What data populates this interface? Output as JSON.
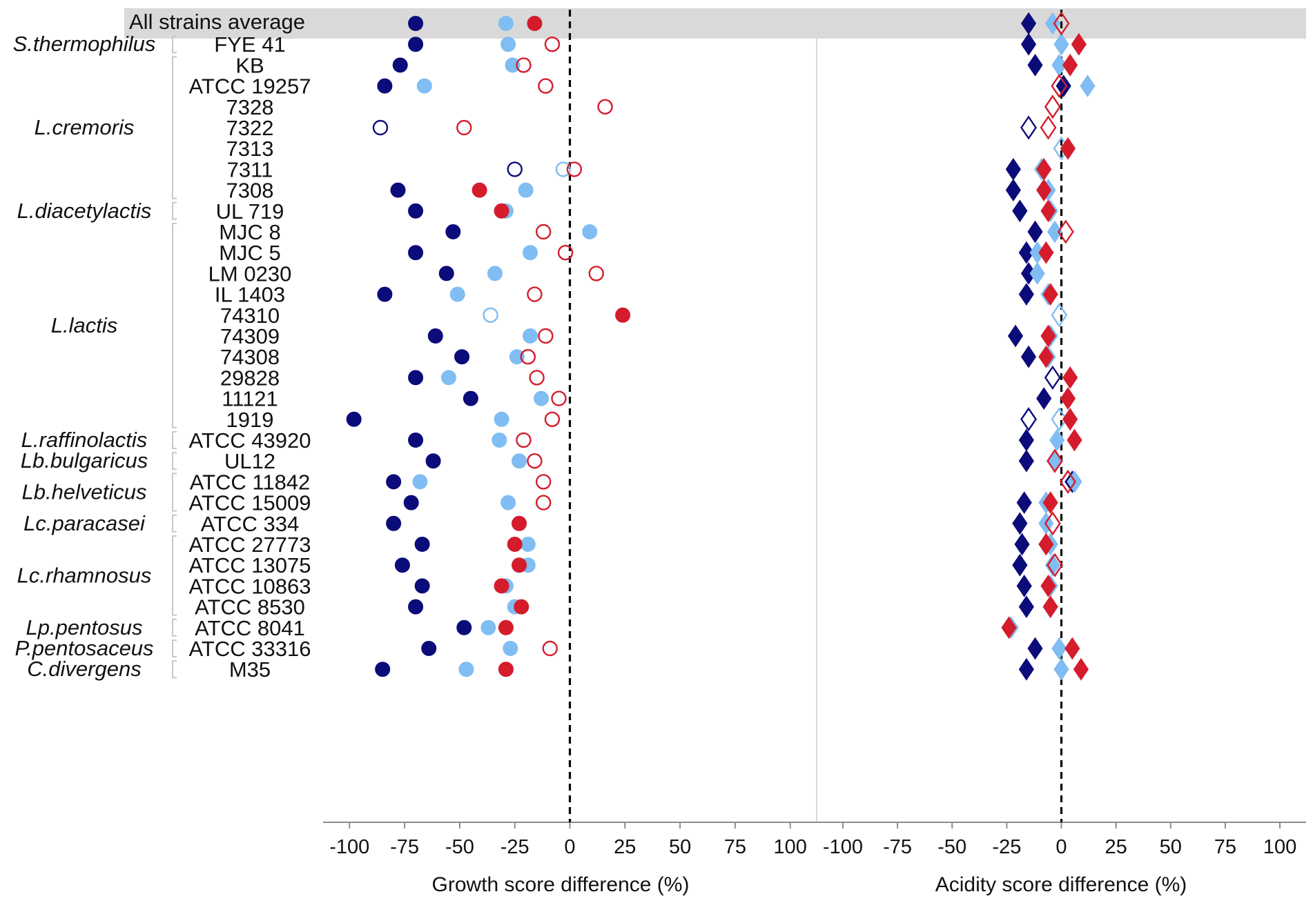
{
  "chart_data": [
    {
      "type": "scatter",
      "panel": "growth",
      "xlabel": "Growth score difference (%)",
      "xlim": [
        -112,
        112
      ],
      "xticks": [
        -100,
        -75,
        -50,
        -25,
        0,
        25,
        50,
        75,
        100
      ],
      "xtick_labels": [
        "-100",
        "-75",
        "-50",
        "-25",
        "0",
        "25",
        "50",
        "75",
        "100"
      ],
      "reference_line": 0,
      "marker": "circle",
      "series": [
        {
          "name": "dark-blue",
          "color": "#0b0b7a",
          "values": [
            -70,
            -70,
            -77,
            -84,
            null,
            -86,
            null,
            -25,
            -78,
            -70,
            -53,
            -70,
            -56,
            -84,
            null,
            -61,
            -49,
            -70,
            -45,
            -98,
            -70,
            -62,
            -80,
            -72,
            -80,
            -67,
            -76,
            -67,
            -70,
            -48,
            -64,
            -85
          ],
          "filled": [
            true,
            true,
            true,
            true,
            false,
            false,
            false,
            false,
            true,
            true,
            true,
            true,
            true,
            true,
            false,
            true,
            true,
            true,
            true,
            true,
            true,
            true,
            true,
            true,
            true,
            true,
            true,
            true,
            true,
            true,
            true,
            true
          ]
        },
        {
          "name": "light-blue",
          "color": "#80bdf2",
          "values": [
            -29,
            -28,
            -26,
            -66,
            null,
            null,
            null,
            -3,
            -20,
            -29,
            9,
            -18,
            -34,
            -51,
            -36,
            -18,
            -24,
            -55,
            -13,
            -31,
            -32,
            -23,
            -68,
            -28,
            -23,
            -19,
            -19,
            -29,
            -25,
            -37,
            -27,
            -47
          ],
          "filled": [
            true,
            true,
            true,
            true,
            false,
            false,
            false,
            false,
            true,
            true,
            true,
            true,
            true,
            true,
            false,
            true,
            true,
            true,
            true,
            true,
            true,
            true,
            true,
            true,
            true,
            true,
            true,
            true,
            true,
            true,
            true,
            true
          ]
        },
        {
          "name": "red",
          "color": "#d41c2c",
          "values": [
            -16,
            -8,
            -21,
            -11,
            16,
            -48,
            null,
            2,
            -41,
            -31,
            -12,
            -2,
            12,
            -16,
            24,
            -11,
            -19,
            -15,
            -5,
            -8,
            -21,
            -16,
            -12,
            -12,
            -23,
            -25,
            -23,
            -31,
            -22,
            -29,
            -9,
            -29
          ],
          "filled": [
            true,
            false,
            false,
            false,
            false,
            false,
            false,
            false,
            true,
            true,
            false,
            false,
            false,
            false,
            true,
            false,
            false,
            false,
            false,
            false,
            false,
            false,
            false,
            false,
            true,
            true,
            true,
            true,
            true,
            true,
            false,
            true
          ]
        }
      ]
    },
    {
      "type": "scatter",
      "panel": "acidity",
      "xlabel": "Acidity score difference (%)",
      "xlim": [
        -112,
        112
      ],
      "xticks": [
        -100,
        -75,
        -50,
        -25,
        0,
        25,
        50,
        75,
        100
      ],
      "xtick_labels": [
        "-100",
        "-75",
        "-50",
        "-25",
        "0",
        "25",
        "50",
        "75",
        "100"
      ],
      "reference_line": 0,
      "marker": "diamond",
      "series": [
        {
          "name": "dark-blue",
          "color": "#0b0b7a",
          "values": [
            -15,
            -15,
            -12,
            1,
            null,
            -15,
            null,
            -22,
            -22,
            -19,
            -12,
            -16,
            -15,
            -16,
            null,
            -21,
            -15,
            -4,
            -8,
            -15,
            -16,
            -16,
            5,
            -17,
            -19,
            -18,
            -19,
            -17,
            -16,
            null,
            -12,
            -16
          ],
          "filled": [
            true,
            true,
            true,
            true,
            false,
            false,
            false,
            true,
            true,
            true,
            true,
            true,
            true,
            true,
            false,
            true,
            true,
            false,
            true,
            false,
            true,
            true,
            true,
            true,
            true,
            true,
            true,
            true,
            true,
            false,
            true,
            true
          ]
        },
        {
          "name": "light-blue",
          "color": "#80bdf2",
          "values": [
            -4,
            0,
            -1,
            12,
            null,
            null,
            0,
            -9,
            -6,
            -5,
            -3,
            -11,
            -11,
            -6,
            -1,
            -5,
            -6,
            null,
            null,
            -1,
            -2,
            -3,
            6,
            -7,
            -7,
            -5,
            -4,
            -5,
            -5,
            -23,
            -1,
            0
          ],
          "filled": [
            true,
            true,
            true,
            true,
            false,
            false,
            false,
            true,
            true,
            true,
            true,
            true,
            true,
            true,
            false,
            true,
            true,
            false,
            false,
            false,
            true,
            true,
            true,
            true,
            true,
            true,
            true,
            true,
            true,
            true,
            true,
            true
          ]
        },
        {
          "name": "red",
          "color": "#d41c2c",
          "values": [
            0,
            8,
            4,
            -1,
            -4,
            -6,
            3,
            -8,
            -8,
            -6,
            2,
            -7,
            null,
            -5,
            null,
            -6,
            -7,
            4,
            3,
            4,
            6,
            -3,
            3,
            -5,
            -4,
            -7,
            -3,
            -6,
            -5,
            -24,
            5,
            9
          ],
          "filled": [
            false,
            true,
            true,
            false,
            false,
            false,
            true,
            true,
            true,
            true,
            false,
            true,
            true,
            true,
            false,
            true,
            true,
            true,
            true,
            true,
            true,
            false,
            false,
            true,
            false,
            true,
            false,
            true,
            true,
            true,
            true,
            true
          ]
        }
      ]
    }
  ],
  "rows": {
    "average_label": "All strains average",
    "strains": [
      "FYE 41",
      "KB",
      "ATCC 19257",
      "7328",
      "7322",
      "7313",
      "7311",
      "7308",
      "UL 719",
      "MJC 8",
      "MJC 5",
      "LM 0230",
      "IL 1403",
      "74310",
      "74309",
      "74308",
      "29828",
      "11121",
      "1919",
      "ATCC 43920",
      "UL12",
      "ATCC 11842",
      "ATCC 15009",
      "ATCC 334",
      "ATCC 27773",
      "ATCC 13075",
      "ATCC 10863",
      "ATCC 8530",
      "ATCC 8041",
      "ATCC 33316",
      "M35"
    ]
  },
  "species_groups": [
    {
      "name": "S.thermophilus",
      "first": 0,
      "last": 0
    },
    {
      "name": "L.cremoris",
      "first": 1,
      "last": 7
    },
    {
      "name": "L.diacetylactis",
      "first": 8,
      "last": 8
    },
    {
      "name": "L.lactis",
      "first": 9,
      "last": 18
    },
    {
      "name": "L.raffinolactis",
      "first": 19,
      "last": 19
    },
    {
      "name": "Lb.bulgaricus",
      "first": 20,
      "last": 20
    },
    {
      "name": "Lb.helveticus",
      "first": 21,
      "last": 22
    },
    {
      "name": "Lc.paracasei",
      "first": 23,
      "last": 23
    },
    {
      "name": "Lc.rhamnosus",
      "first": 24,
      "last": 27
    },
    {
      "name": "Lp.pentosus",
      "first": 28,
      "last": 28
    },
    {
      "name": "P.pentosaceus",
      "first": 29,
      "last": 29
    },
    {
      "name": "C.divergens",
      "first": 30,
      "last": 30
    }
  ],
  "colors": {
    "dark_blue": "#0b0b7a",
    "light_blue": "#80bdf2",
    "red": "#d41c2c",
    "band": "#d9d9d9",
    "axis": "#8c8c8c"
  }
}
